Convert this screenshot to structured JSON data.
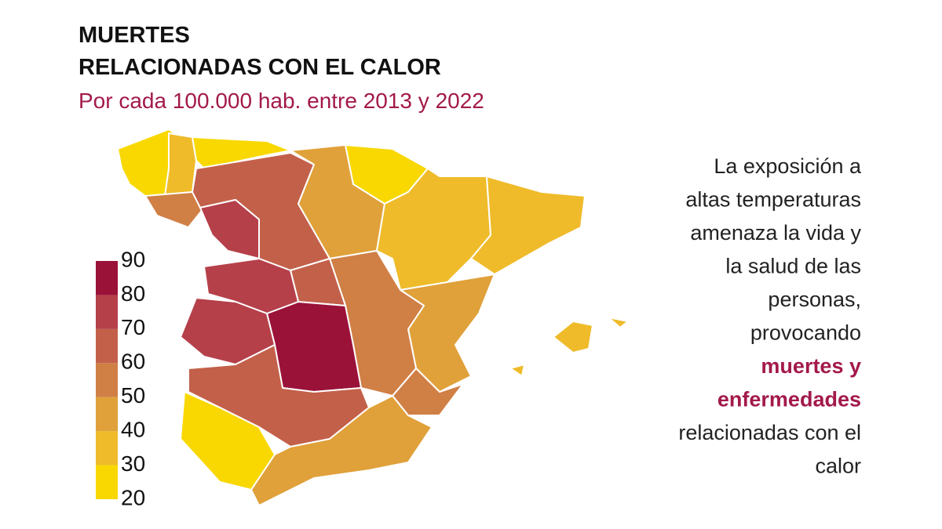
{
  "header": {
    "title": [
      "MUERTES",
      "RELACIONADAS CON EL CALOR"
    ],
    "subtitle": "Por cada 100.000 hab. entre 2013 y 2022"
  },
  "colorbar": {
    "range": [
      20,
      90
    ],
    "ticks": [
      90,
      80,
      70,
      60,
      50,
      40,
      30,
      20
    ],
    "colors": [
      "#f8d800",
      "#efbb2a",
      "#e0a13a",
      "#d07f45",
      "#c3604a",
      "#b5404a",
      "#9b1239"
    ]
  },
  "paragraph": {
    "before": [
      "La exposición a",
      "altas temperaturas",
      "amenaza la vida y",
      "la salud de las",
      "personas,",
      "provocando"
    ],
    "highlight": [
      "muertes y",
      "enfermedades"
    ],
    "after": [
      "relacionadas con el",
      "calor"
    ]
  }
}
